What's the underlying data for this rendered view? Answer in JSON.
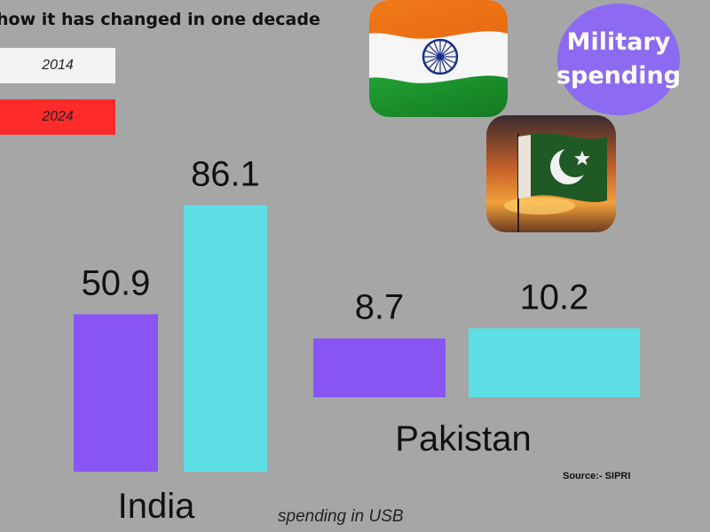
{
  "title": "how it has changed in one decade",
  "badge": {
    "line1": "Military",
    "line2": "spending"
  },
  "source": "Source:- SIPRI",
  "unit_label": "spending in USB",
  "legend": {
    "label_2014": "2014",
    "label_2024": "2024"
  },
  "icons": {
    "flag_india": "india-flag-icon",
    "flag_pakistan": "pakistan-flag-icon"
  },
  "colors": {
    "series_2014": "#8a55f5",
    "series_2024": "#5ddfe5",
    "badge": "#8c6af2",
    "background": "#a6a6a6"
  },
  "chart_data": {
    "type": "bar",
    "categories": [
      "India",
      "Pakistan"
    ],
    "series": [
      {
        "values": [
          50.9,
          8.7
        ]
      },
      {
        "values": [
          86.1,
          10.2
        ]
      }
    ],
    "data_labels": [
      [
        "50.9",
        "8.7"
      ],
      [
        "86.1",
        "10.2"
      ]
    ]
  }
}
